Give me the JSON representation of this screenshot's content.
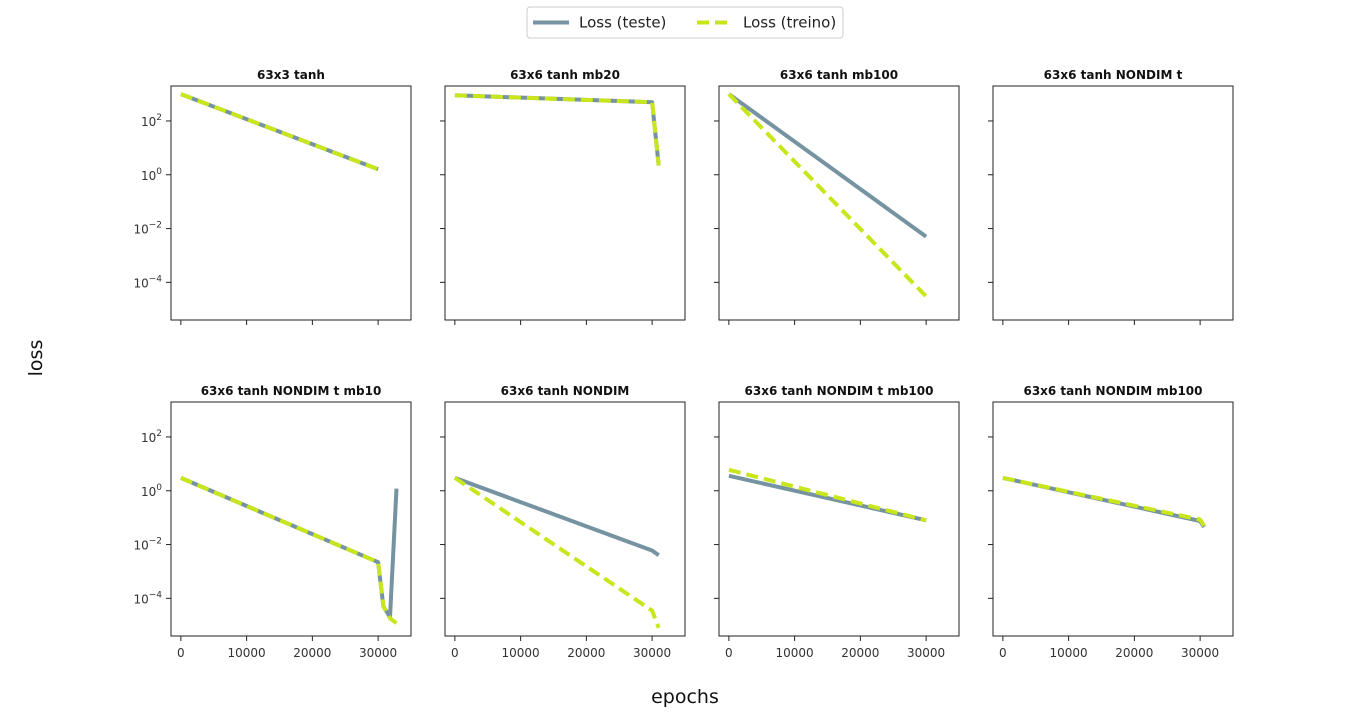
{
  "figure": {
    "xlabel": "epochs",
    "ylabel": "loss"
  },
  "legend": {
    "placement": "top-center",
    "items": [
      {
        "label": "Loss (teste)",
        "color": "#7593a1",
        "style": "solid"
      },
      {
        "label": "Loss (treino)",
        "color": "#c8e61b",
        "style": "dashed"
      }
    ]
  },
  "chart_data": [
    {
      "type": "line",
      "title": "63x3 tanh",
      "xlim": [
        -1500,
        35000
      ],
      "ylim_log10": [
        -5.4,
        3.3
      ],
      "yscale": "log",
      "xticks": [
        "0",
        "10000",
        "20000",
        "30000"
      ],
      "show_xtick_labels": false,
      "yticks": [
        "10^2",
        "10^0",
        "10^-2",
        "10^-4"
      ],
      "show_ytick_labels": true,
      "series": [
        {
          "name": "Loss (teste)",
          "x": [
            0,
            30000
          ],
          "y": [
            "1e3",
            "1.6"
          ]
        },
        {
          "name": "Loss (treino)",
          "x": [
            0,
            30000
          ],
          "y": [
            "1e3",
            "1.6"
          ]
        }
      ]
    },
    {
      "type": "line",
      "title": "63x6 tanh mb20",
      "xlim": [
        -1500,
        35000
      ],
      "ylim_log10": [
        -5.4,
        3.3
      ],
      "yscale": "log",
      "xticks": [
        "0",
        "10000",
        "20000",
        "30000"
      ],
      "show_xtick_labels": false,
      "yticks": [
        "10^2",
        "10^0",
        "10^-2",
        "10^-4"
      ],
      "show_ytick_labels": false,
      "series": [
        {
          "name": "Loss (teste)",
          "x": [
            0,
            30000,
            31000
          ],
          "y": [
            "9e2",
            "5e2",
            "2.2"
          ]
        },
        {
          "name": "Loss (treino)",
          "x": [
            0,
            30000,
            31000
          ],
          "y": [
            "9e2",
            "5e2",
            "2.2"
          ]
        }
      ]
    },
    {
      "type": "line",
      "title": "63x6 tanh mb100",
      "xlim": [
        -1500,
        35000
      ],
      "ylim_log10": [
        -5.4,
        3.3
      ],
      "yscale": "log",
      "xticks": [
        "0",
        "10000",
        "20000",
        "30000"
      ],
      "show_xtick_labels": false,
      "yticks": [
        "10^2",
        "10^0",
        "10^-2",
        "10^-4"
      ],
      "show_ytick_labels": false,
      "series": [
        {
          "name": "Loss (teste)",
          "x": [
            0,
            30000
          ],
          "y": [
            "1e3",
            "5e-3"
          ]
        },
        {
          "name": "Loss (treino)",
          "x": [
            0,
            30000
          ],
          "y": [
            "1e3",
            "3e-5"
          ]
        }
      ]
    },
    {
      "type": "line",
      "title": "63x6 tanh NONDIM t",
      "xlim": [
        -1500,
        35000
      ],
      "ylim_log10": [
        -5.4,
        3.3
      ],
      "yscale": "log",
      "xticks": [
        "0",
        "10000",
        "20000",
        "30000"
      ],
      "show_xtick_labels": false,
      "yticks": [
        "10^2",
        "10^0",
        "10^-2",
        "10^-4"
      ],
      "show_ytick_labels": false,
      "series": []
    },
    {
      "type": "line",
      "title": "63x6 tanh NONDIM t mb10",
      "xlim": [
        -1500,
        35000
      ],
      "ylim_log10": [
        -5.4,
        3.3
      ],
      "yscale": "log",
      "xticks": [
        "0",
        "10000",
        "20000",
        "30000"
      ],
      "show_xtick_labels": true,
      "yticks": [
        "10^2",
        "10^0",
        "10^-2",
        "10^-4"
      ],
      "show_ytick_labels": true,
      "series": [
        {
          "name": "Loss (teste)",
          "x": [
            0,
            30000,
            30800,
            31800,
            32800
          ],
          "y": [
            "3",
            "2.2e-3",
            "5e-5",
            "2e-5",
            "1.2"
          ]
        },
        {
          "name": "Loss (treino)",
          "x": [
            0,
            30000,
            30800,
            31800,
            32800
          ],
          "y": [
            "3",
            "2.2e-3",
            "5e-5",
            "1.8e-5",
            "1.2e-5"
          ]
        }
      ]
    },
    {
      "type": "line",
      "title": "63x6 tanh NONDIM",
      "xlim": [
        -1500,
        35000
      ],
      "ylim_log10": [
        -5.4,
        3.3
      ],
      "yscale": "log",
      "xticks": [
        "0",
        "10000",
        "20000",
        "30000"
      ],
      "show_xtick_labels": true,
      "yticks": [
        "10^2",
        "10^0",
        "10^-2",
        "10^-4"
      ],
      "show_ytick_labels": false,
      "series": [
        {
          "name": "Loss (teste)",
          "x": [
            0,
            30000,
            31000
          ],
          "y": [
            "3",
            "6e-3",
            "4e-3"
          ]
        },
        {
          "name": "Loss (treino)",
          "x": [
            0,
            30000,
            31000
          ],
          "y": [
            "3",
            "3.5e-5",
            "8e-6"
          ]
        }
      ]
    },
    {
      "type": "line",
      "title": "63x6 tanh NONDIM t mb100",
      "xlim": [
        -1500,
        35000
      ],
      "ylim_log10": [
        -5.4,
        3.3
      ],
      "yscale": "log",
      "xticks": [
        "0",
        "10000",
        "20000",
        "30000"
      ],
      "show_xtick_labels": true,
      "yticks": [
        "10^2",
        "10^0",
        "10^-2",
        "10^-4"
      ],
      "show_ytick_labels": false,
      "series": [
        {
          "name": "Loss (teste)",
          "x": [
            0,
            30000
          ],
          "y": [
            "3.6",
            "0.08"
          ]
        },
        {
          "name": "Loss (treino)",
          "x": [
            0,
            30000
          ],
          "y": [
            "6",
            "0.08"
          ]
        }
      ]
    },
    {
      "type": "line",
      "title": "63x6 tanh NONDIM mb100",
      "xlim": [
        -1500,
        35000
      ],
      "ylim_log10": [
        -5.4,
        3.3
      ],
      "yscale": "log",
      "xticks": [
        "0",
        "10000",
        "20000",
        "30000"
      ],
      "show_xtick_labels": true,
      "yticks": [
        "10^2",
        "10^0",
        "10^-2",
        "10^-4"
      ],
      "show_ytick_labels": false,
      "series": [
        {
          "name": "Loss (teste)",
          "x": [
            0,
            30000,
            30600
          ],
          "y": [
            "3",
            "0.075",
            "0.045"
          ]
        },
        {
          "name": "Loss (treino)",
          "x": [
            0,
            30000,
            30600
          ],
          "y": [
            "3",
            "0.085",
            "0.05"
          ]
        }
      ]
    }
  ]
}
